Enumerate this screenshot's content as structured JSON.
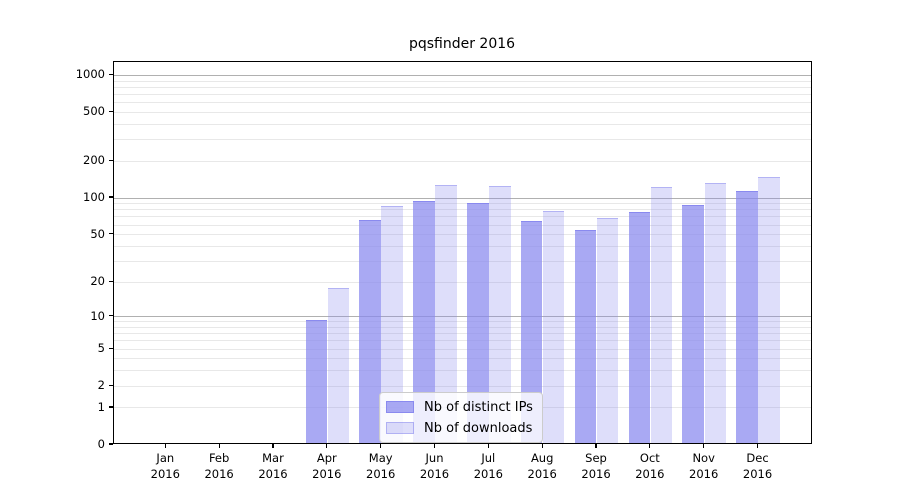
{
  "chart_data": {
    "type": "bar",
    "title": "pqsfinder 2016",
    "categories": [
      "Jan 2016",
      "Feb 2016",
      "Mar 2016",
      "Apr 2016",
      "May 2016",
      "Jun 2016",
      "Jul 2016",
      "Aug 2016",
      "Sep 2016",
      "Oct 2016",
      "Nov 2016",
      "Dec 2016"
    ],
    "x_tick_line1": [
      "Jan",
      "Feb",
      "Mar",
      "Apr",
      "May",
      "Jun",
      "Jul",
      "Aug",
      "Sep",
      "Oct",
      "Nov",
      "Dec"
    ],
    "x_tick_line2": "2016",
    "series": [
      {
        "name": "Nb of distinct IPs",
        "fill": "rgba(136,136,238,0.72)",
        "edge": "rgba(136,136,238,0.95)",
        "values": [
          0,
          0,
          0,
          9,
          64,
          91,
          87,
          63,
          53,
          74,
          85,
          110
        ]
      },
      {
        "name": "Nb of downloads",
        "fill": "rgba(136,136,238,0.28)",
        "edge": "rgba(136,136,238,0.5)",
        "values": [
          0,
          0,
          0,
          17,
          83,
          123,
          120,
          75,
          66,
          119,
          128,
          144
        ]
      }
    ],
    "y_ticks": [
      0,
      1,
      2,
      5,
      10,
      20,
      50,
      100,
      200,
      500,
      1000
    ],
    "y_scale": "log1p",
    "ylim": [
      0,
      1250
    ],
    "grid": "both",
    "grid_major_color": "#b0b0b0",
    "grid_minor_color": "#e8e8e8",
    "axis_color": "#000000",
    "background": "#ffffff",
    "legend_position": "lower center"
  }
}
